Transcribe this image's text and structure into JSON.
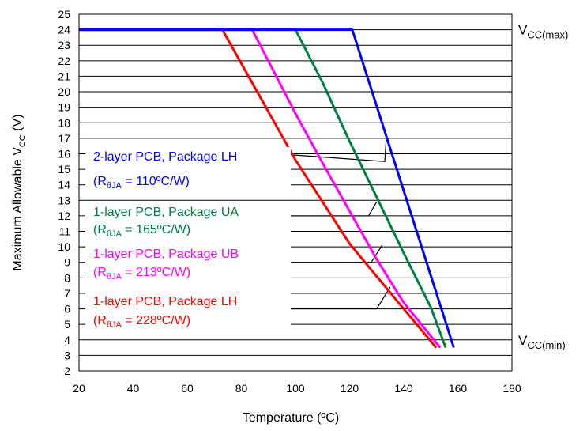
{
  "chart_data": {
    "type": "line",
    "xlabel": "Temperature (ºC)",
    "ylabel": {
      "main": "Maximum Allowable V",
      "sub": "CC",
      "unit": " (V)"
    },
    "xlim": [
      20,
      180
    ],
    "ylim": [
      2,
      25
    ],
    "x_ticks": [
      20,
      40,
      60,
      80,
      100,
      120,
      140,
      160,
      180
    ],
    "y_ticks": [
      2,
      3,
      4,
      5,
      6,
      7,
      8,
      9,
      10,
      11,
      12,
      13,
      14,
      15,
      16,
      17,
      18,
      19,
      20,
      21,
      22,
      23,
      24,
      25
    ],
    "grid": "horizontal",
    "reference_lines": [
      {
        "y": 24,
        "label_main": "V",
        "label_sub": "CC(max)"
      },
      {
        "y": 4,
        "label_main": "V",
        "label_sub": "CC(min)"
      }
    ],
    "series": [
      {
        "label_line1": "2-layer PCB, Package LH",
        "label_line2": {
          "prefix": "(R",
          "sub": "θJA",
          "suffix": " = 110ºC/W)"
        },
        "color": "#0000ff",
        "points": [
          [
            20,
            24
          ],
          [
            121,
            24
          ],
          [
            158.5,
            3.5
          ]
        ],
        "callout": {
          "from": [
            351,
            16
          ],
          "via": [
            133,
            15.5
          ],
          "to": [
            133.5,
            16.9
          ]
        }
      },
      {
        "label_line1": "1-layer PCB, Package UA",
        "label_line2": {
          "prefix": "(R",
          "sub": "θJA",
          "suffix": " = 165ºC/W)"
        },
        "color": "#008040",
        "points": [
          [
            20,
            24
          ],
          [
            100,
            24
          ],
          [
            110,
            20.6
          ],
          [
            120,
            16.8
          ],
          [
            130,
            13.2
          ],
          [
            140,
            9.6
          ],
          [
            150,
            6.1
          ],
          [
            155.5,
            3.5
          ]
        ],
        "callout": {
          "from": [
            357,
            12
          ],
          "via": [
            127,
            12
          ],
          "to": [
            130,
            12.9
          ]
        }
      },
      {
        "label_line1": "1-layer PCB, Package UB",
        "label_line2": {
          "prefix": "(R",
          "sub": "θJA",
          "suffix": " = 213ºC/W)"
        },
        "color": "#ff00ff",
        "points": [
          [
            20,
            24
          ],
          [
            84,
            24
          ],
          [
            100,
            18.6
          ],
          [
            110,
            15.4
          ],
          [
            120,
            12.3
          ],
          [
            130,
            9.2
          ],
          [
            140,
            6.4
          ],
          [
            153.5,
            3.5
          ]
        ],
        "callout": {
          "from": [
            369,
            9
          ],
          "via": [
            128,
            9
          ],
          "to": [
            132,
            10.1
          ]
        }
      },
      {
        "label_line1": "1-layer PCB, Package LH",
        "label_line2": {
          "prefix": "(R",
          "sub": "θJA",
          "suffix": " = 228ºC/W)"
        },
        "color": "#ff0000",
        "points": [
          [
            20,
            24
          ],
          [
            73,
            24
          ],
          [
            100,
            15.6
          ],
          [
            120,
            10.2
          ],
          [
            140,
            6.0
          ],
          [
            152,
            3.5
          ]
        ],
        "callout": {
          "from": [
            367,
            6
          ],
          "via": [
            130,
            6
          ],
          "to": [
            135,
            7.4
          ]
        }
      }
    ]
  }
}
